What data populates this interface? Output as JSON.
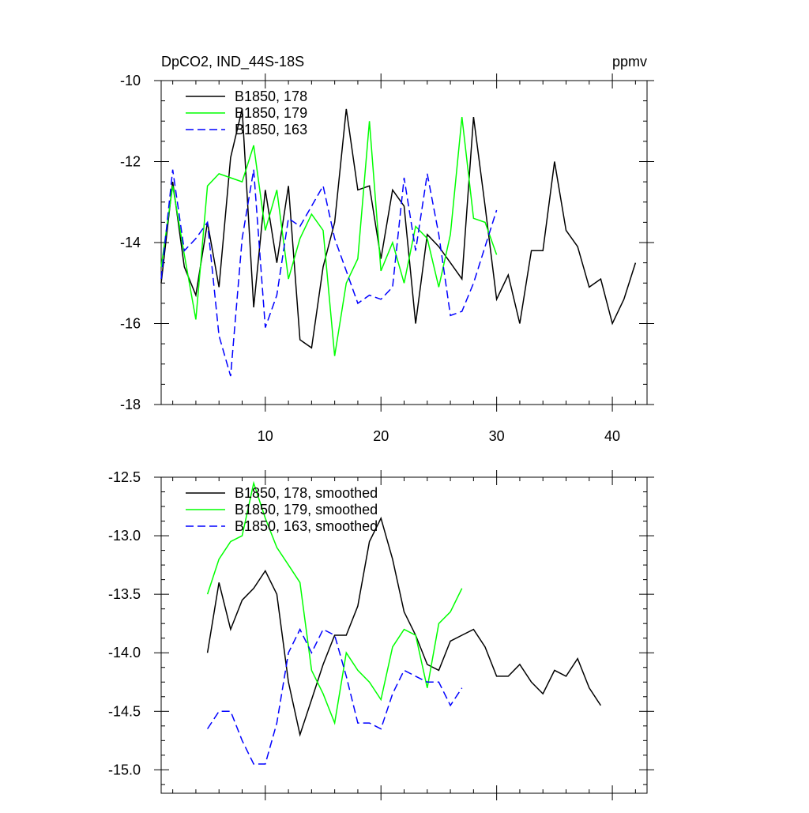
{
  "chart_data": [
    {
      "type": "line",
      "title": "DpCO2, IND_44S-18S",
      "units": "ppmv",
      "xlabel": "",
      "ylabel": "",
      "xlim": [
        1,
        43
      ],
      "ylim": [
        -18,
        -10
      ],
      "x_ticks": [
        10,
        20,
        30,
        40
      ],
      "y_ticks": [
        -18,
        -16,
        -14,
        -12,
        -10
      ],
      "legend_position": "top-left",
      "series": [
        {
          "name": "B1850, 178",
          "color": "#000000",
          "dash": "solid",
          "x": [
            1,
            2,
            3,
            4,
            5,
            6,
            7,
            8,
            9,
            10,
            11,
            12,
            13,
            14,
            15,
            16,
            17,
            18,
            19,
            20,
            21,
            22,
            23,
            24,
            25,
            26,
            27,
            28,
            29,
            30,
            31,
            32,
            33,
            34,
            35,
            36,
            37,
            38,
            39,
            40,
            41,
            42
          ],
          "values": [
            -15.0,
            -12.5,
            -14.6,
            -15.3,
            -13.5,
            -15.1,
            -11.9,
            -10.7,
            -15.6,
            -12.7,
            -14.5,
            -12.6,
            -16.4,
            -16.6,
            -14.6,
            -13.5,
            -10.7,
            -12.7,
            -12.6,
            -14.4,
            -12.7,
            -13.1,
            -16.0,
            -13.8,
            -14.1,
            -14.5,
            -14.9,
            -10.9,
            -13.1,
            -15.4,
            -14.8,
            -16.0,
            -14.2,
            -14.2,
            -12.0,
            -13.7,
            -14.1,
            -15.1,
            -14.9,
            -16.0,
            -15.4,
            -14.5
          ]
        },
        {
          "name": "B1850, 179",
          "color": "#00ff00",
          "dash": "solid",
          "x": [
            1,
            2,
            3,
            4,
            5,
            6,
            7,
            8,
            9,
            10,
            11,
            12,
            13,
            14,
            15,
            16,
            17,
            18,
            19,
            20,
            21,
            22,
            23,
            24,
            25,
            26,
            27,
            28,
            29,
            30
          ],
          "values": [
            -14.6,
            -12.6,
            -14.3,
            -15.9,
            -12.6,
            -12.3,
            -12.4,
            -12.5,
            -11.6,
            -13.7,
            -12.7,
            -14.9,
            -13.9,
            -13.3,
            -13.7,
            -16.8,
            -15.0,
            -14.4,
            -11.0,
            -14.7,
            -14.0,
            -15.0,
            -13.6,
            -13.9,
            -15.1,
            -13.8,
            -10.9,
            -13.4,
            -13.5,
            -14.3
          ]
        },
        {
          "name": "B1850, 163",
          "color": "#0000ff",
          "dash": "dashed",
          "x": [
            1,
            2,
            3,
            4,
            5,
            6,
            7,
            8,
            9,
            10,
            11,
            12,
            13,
            14,
            15,
            16,
            17,
            18,
            19,
            20,
            21,
            22,
            23,
            24,
            25,
            26,
            27,
            28,
            29,
            30
          ],
          "values": [
            -14.9,
            -12.2,
            -14.2,
            -13.9,
            -13.5,
            -16.3,
            -17.3,
            -13.9,
            -12.2,
            -16.1,
            -15.3,
            -13.4,
            -13.6,
            -13.1,
            -12.6,
            -13.9,
            -14.7,
            -15.5,
            -15.3,
            -15.4,
            -15.1,
            -12.4,
            -14.2,
            -12.3,
            -13.8,
            -15.8,
            -15.7,
            -15.0,
            -14.1,
            -13.2
          ]
        }
      ]
    },
    {
      "type": "line",
      "title": "",
      "xlabel": "",
      "ylabel": "",
      "xlim": [
        1,
        43
      ],
      "ylim": [
        -15.2,
        -12.5
      ],
      "x_ticks": [
        10,
        20,
        30,
        40
      ],
      "y_ticks": [
        -15.0,
        -14.5,
        -14.0,
        -13.5,
        -13.0,
        -12.5
      ],
      "y_tick_labels": [
        "-15.0",
        "-14.5",
        "-14.0",
        "-13.5",
        "-13.0",
        "-12.5"
      ],
      "legend_position": "top-left",
      "series": [
        {
          "name": "B1850, 178, smoothed",
          "color": "#000000",
          "dash": "solid",
          "x": [
            5,
            6,
            7,
            8,
            9,
            10,
            11,
            12,
            13,
            14,
            15,
            16,
            17,
            18,
            19,
            20,
            21,
            22,
            23,
            24,
            25,
            26,
            27,
            28,
            29,
            30,
            31,
            32,
            33,
            34,
            35,
            36,
            37,
            38,
            39
          ],
          "values": [
            -14.0,
            -13.4,
            -13.8,
            -13.55,
            -13.45,
            -13.3,
            -13.5,
            -14.25,
            -14.7,
            -14.4,
            -14.1,
            -13.85,
            -13.85,
            -13.6,
            -13.05,
            -12.85,
            -13.2,
            -13.65,
            -13.85,
            -14.1,
            -14.15,
            -13.9,
            -13.85,
            -13.8,
            -13.95,
            -14.2,
            -14.2,
            -14.1,
            -14.25,
            -14.35,
            -14.15,
            -14.2,
            -14.05,
            -14.3,
            -14.45
          ]
        },
        {
          "name": "B1850, 179, smoothed",
          "color": "#00ff00",
          "dash": "solid",
          "x": [
            5,
            6,
            7,
            8,
            9,
            10,
            11,
            12,
            13,
            14,
            15,
            16,
            17,
            18,
            19,
            20,
            21,
            22,
            23,
            24,
            25,
            26,
            27
          ],
          "values": [
            -13.5,
            -13.2,
            -13.05,
            -13.0,
            -12.55,
            -12.85,
            -13.1,
            -13.25,
            -13.4,
            -14.15,
            -14.35,
            -14.6,
            -14.0,
            -14.15,
            -14.25,
            -14.4,
            -13.95,
            -13.8,
            -13.85,
            -14.3,
            -13.75,
            -13.65,
            -13.45
          ]
        },
        {
          "name": "B1850, 163, smoothed",
          "color": "#0000ff",
          "dash": "dashed",
          "x": [
            5,
            6,
            7,
            8,
            9,
            10,
            11,
            12,
            13,
            14,
            15,
            16,
            17,
            18,
            19,
            20,
            21,
            22,
            23,
            24,
            25,
            26,
            27
          ],
          "values": [
            -14.65,
            -14.5,
            -14.5,
            -14.75,
            -14.95,
            -14.95,
            -14.6,
            -14.0,
            -13.8,
            -14.0,
            -13.8,
            -13.85,
            -14.2,
            -14.6,
            -14.6,
            -14.65,
            -14.35,
            -14.15,
            -14.2,
            -14.25,
            -14.25,
            -14.45,
            -14.3
          ]
        }
      ]
    }
  ]
}
